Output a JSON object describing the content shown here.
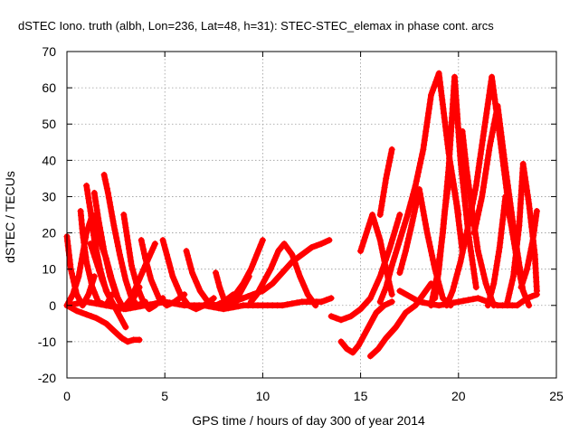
{
  "chart_data": {
    "type": "scatter",
    "title": "dSTEC Iono. truth (albh, Lon=236, Lat=48, h=31): STEC-STEC_elemax in phase cont. arcs",
    "xlabel": "GPS time / hours of day 300 of year 2014",
    "ylabel": "dSTEC  / TECUs",
    "xlim": [
      0,
      25
    ],
    "ylim": [
      -20,
      70
    ],
    "xticks": [
      0,
      5,
      10,
      15,
      20,
      25
    ],
    "yticks": [
      -20,
      -10,
      0,
      10,
      20,
      30,
      40,
      50,
      60,
      70
    ],
    "grid": true,
    "marker": "+",
    "color": "#ff0000",
    "series": [
      {
        "x": [
          0.0,
          0.2,
          0.5,
          0.8,
          1.1,
          1.4
        ],
        "y": [
          19,
          10,
          3,
          0,
          3,
          8
        ]
      },
      {
        "x": [
          0.0,
          0.3,
          0.6,
          0.8,
          1.0,
          1.3,
          1.6,
          2.0,
          2.3,
          2.6,
          2.9,
          3.2,
          3.4,
          3.7
        ],
        "y": [
          0,
          3,
          8,
          14,
          20,
          25,
          19,
          13,
          7,
          2,
          -1,
          0,
          2,
          5
        ]
      },
      {
        "x": [
          0.0,
          0.5,
          1.0,
          1.5,
          2.0,
          2.4,
          2.8,
          3.1,
          3.4,
          3.7
        ],
        "y": [
          0,
          -1.5,
          -2.5,
          -3.5,
          -5,
          -7,
          -9,
          -10,
          -9.5,
          -9.5
        ]
      },
      {
        "x": [
          0.7,
          0.8,
          1.0,
          1.3,
          1.6,
          2.0,
          2.3
        ],
        "y": [
          26,
          20,
          12,
          5,
          1,
          0,
          3
        ]
      },
      {
        "x": [
          1.0,
          1.2,
          1.4,
          1.7,
          2.0,
          2.4,
          2.7,
          3.0,
          3.3,
          3.6,
          4.0,
          4.5
        ],
        "y": [
          33,
          26,
          18,
          10,
          4,
          0,
          -1,
          0,
          2,
          6,
          11,
          17
        ]
      },
      {
        "x": [
          1.4,
          1.6,
          1.9,
          2.2,
          2.5,
          2.8
        ],
        "y": [
          31,
          24,
          15,
          8,
          3,
          0
        ]
      },
      {
        "x": [
          1.9,
          2.1,
          2.4,
          2.7,
          3.0,
          3.3,
          3.6,
          4.0
        ],
        "y": [
          36,
          31,
          22,
          14,
          7,
          2,
          0,
          1
        ]
      },
      {
        "x": [
          1.2,
          1.5,
          1.8,
          2.1,
          2.4,
          2.7,
          3.0
        ],
        "y": [
          17,
          12,
          7,
          3,
          0,
          -3,
          -6
        ]
      },
      {
        "x": [
          2.9,
          3.1,
          3.3,
          3.6,
          3.9,
          4.2,
          4.5,
          4.9
        ],
        "y": [
          25,
          18,
          11,
          5,
          1,
          -1,
          0,
          2
        ]
      },
      {
        "x": [
          3.8,
          4.0,
          4.3,
          4.7,
          5.1,
          5.5,
          6.0
        ],
        "y": [
          18,
          13,
          7,
          2,
          0,
          1,
          3
        ]
      },
      {
        "x": [
          4.9,
          5.1,
          5.4,
          5.8,
          6.2,
          6.6,
          7.0,
          7.5
        ],
        "y": [
          18,
          14,
          8,
          3,
          0,
          -1,
          0,
          2
        ]
      },
      {
        "x": [
          6.1,
          6.4,
          6.8,
          7.2,
          7.6,
          8.0,
          8.5
        ],
        "y": [
          15,
          9,
          4,
          1,
          0,
          1,
          3
        ]
      },
      {
        "x": [
          7.6,
          7.8,
          8.0,
          8.3,
          8.6,
          8.9,
          9.3
        ],
        "y": [
          9,
          5,
          2,
          0,
          1,
          4,
          8
        ]
      },
      {
        "x": [
          7.9,
          8.2,
          8.6,
          9.0,
          9.4,
          9.7,
          10.0
        ],
        "y": [
          0,
          1,
          3,
          6,
          10,
          14,
          18
        ]
      },
      {
        "x": [
          8.1,
          8.5,
          9.0,
          9.5,
          10.0,
          10.5,
          11.0,
          11.5,
          12.0,
          12.5,
          13.0,
          13.4
        ],
        "y": [
          0,
          1,
          2,
          3,
          4,
          6,
          9,
          12,
          14,
          16,
          17,
          18
        ]
      },
      {
        "x": [
          9.4,
          9.7,
          10.0,
          10.4,
          10.8,
          11.1,
          11.5,
          11.9,
          12.3,
          12.7
        ],
        "y": [
          1,
          3,
          6,
          10,
          15,
          17,
          14,
          8,
          3,
          0
        ]
      },
      {
        "x": [
          0.0,
          1.0,
          2.0,
          3.0,
          4.0,
          5.0,
          6.0,
          7.0,
          8.0,
          9.0,
          10.0,
          11.0,
          12.0,
          13.0,
          13.5
        ],
        "y": [
          0,
          1,
          0,
          -1,
          0,
          1,
          0,
          0,
          -1,
          0,
          0,
          0,
          1,
          1,
          2
        ]
      },
      {
        "x": [
          14.0,
          14.3,
          14.6,
          14.9,
          15.2,
          15.5,
          15.8,
          16.2,
          16.6
        ],
        "y": [
          -10,
          -12,
          -13,
          -11,
          -8,
          -5,
          -2,
          0,
          1
        ]
      },
      {
        "x": [
          13.5,
          14.0,
          14.5,
          15.0,
          15.5,
          16.0,
          16.5,
          17.0
        ],
        "y": [
          -3,
          -4,
          -3,
          -1,
          2,
          8,
          16,
          25
        ]
      },
      {
        "x": [
          15.5,
          15.9,
          16.3,
          16.8,
          17.3,
          17.8,
          18.2,
          18.6
        ],
        "y": [
          -14,
          -12,
          -9,
          -6,
          -2,
          0,
          3,
          6
        ]
      },
      {
        "x": [
          16.0,
          16.3,
          16.6,
          17.0,
          17.4,
          17.8,
          18.2,
          18.6,
          19.0,
          19.5,
          20.0
        ],
        "y": [
          1,
          5,
          11,
          18,
          25,
          33,
          43,
          58,
          64,
          42,
          25
        ]
      },
      {
        "x": [
          15.0,
          15.3,
          15.6,
          16.0,
          16.3,
          16.6
        ],
        "y": [
          15,
          20,
          25,
          18,
          10,
          3
        ]
      },
      {
        "x": [
          16.0,
          16.3,
          16.6
        ],
        "y": [
          25,
          35,
          43
        ]
      },
      {
        "x": [
          17.0,
          17.3,
          17.6,
          18.0,
          18.4,
          18.8,
          19.2,
          19.6
        ],
        "y": [
          9,
          15,
          22,
          32,
          20,
          10,
          2,
          0
        ]
      },
      {
        "x": [
          18.6,
          18.9,
          19.2,
          19.5,
          19.8,
          20.1,
          20.5,
          20.9
        ],
        "y": [
          0,
          8,
          20,
          38,
          63,
          40,
          20,
          5
        ]
      },
      {
        "x": [
          18.8,
          19.0,
          19.3,
          19.6,
          19.9,
          20.2
        ],
        "y": [
          2,
          10,
          26,
          38,
          28,
          15
        ]
      },
      {
        "x": [
          19.4,
          19.7,
          20.1,
          20.5,
          20.9,
          21.3,
          21.7,
          22.1,
          22.5
        ],
        "y": [
          0,
          4,
          12,
          22,
          33,
          48,
          63,
          47,
          30
        ]
      },
      {
        "x": [
          20.2,
          20.4,
          20.7,
          21.0,
          21.4,
          21.8
        ],
        "y": [
          48,
          38,
          26,
          15,
          6,
          0
        ]
      },
      {
        "x": [
          20.8,
          21.2,
          21.6,
          22.0,
          22.4,
          22.8,
          23.2
        ],
        "y": [
          20,
          30,
          44,
          55,
          38,
          22,
          8
        ]
      },
      {
        "x": [
          21.5,
          21.8,
          22.1,
          22.4,
          22.7,
          23.0,
          23.3,
          23.6
        ],
        "y": [
          0,
          6,
          16,
          30,
          22,
          12,
          4,
          0
        ]
      },
      {
        "x": [
          22.5,
          22.8,
          23.1,
          23.3,
          23.6,
          23.9,
          24.0
        ],
        "y": [
          1,
          8,
          22,
          39,
          28,
          14,
          4
        ]
      },
      {
        "x": [
          23.2,
          23.5,
          23.8,
          24.0
        ],
        "y": [
          5,
          10,
          18,
          26
        ]
      },
      {
        "x": [
          17.0,
          18.0,
          19.0,
          20.0,
          21.0,
          22.0,
          23.0,
          23.5,
          24.0
        ],
        "y": [
          4,
          1,
          0,
          1,
          2,
          0,
          0,
          2,
          3
        ]
      }
    ]
  }
}
